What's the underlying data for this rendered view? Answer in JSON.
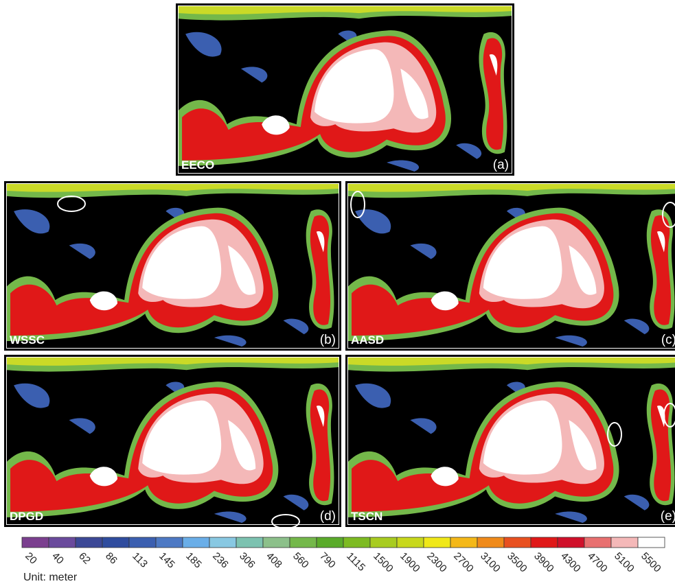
{
  "panels": [
    {
      "name": "EECO",
      "letter": "(a)"
    },
    {
      "name": "WSSC",
      "letter": "(b)"
    },
    {
      "name": "AASD",
      "letter": "(c)"
    },
    {
      "name": "DPGD",
      "letter": "(d)"
    },
    {
      "name": "TSCN",
      "letter": "(e)"
    }
  ],
  "legend": {
    "values": [
      20,
      40,
      62,
      86,
      113,
      145,
      185,
      236,
      306,
      408,
      560,
      790,
      1115,
      1500,
      1900,
      2300,
      2700,
      3100,
      3500,
      3900,
      4300,
      4700,
      5100,
      5500
    ],
    "colors": [
      "#7b3f8f",
      "#6a4a9c",
      "#3c4896",
      "#2f4c9e",
      "#3b5fb0",
      "#4d79c4",
      "#6aaee8",
      "#88c8e2",
      "#7cc2b0",
      "#8cc08a",
      "#74b84a",
      "#5aab2a",
      "#7dbb22",
      "#a8cc20",
      "#c8d81c",
      "#f0e818",
      "#f4b818",
      "#f08a1a",
      "#e85020",
      "#e01818",
      "#d0102a",
      "#e87070",
      "#f4b8b8",
      "#ffffff"
    ],
    "unit": "Unit: meter"
  }
}
